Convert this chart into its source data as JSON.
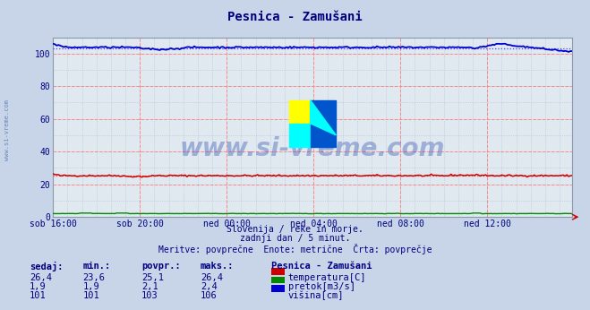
{
  "title": "Pesnica - Zamušani",
  "bg_color": "#c8d4e8",
  "plot_bg_color": "#e0e8f0",
  "grid_color_major_h": "#ff8888",
  "grid_color_major_v": "#ff8888",
  "grid_color_minor": "#b0c0d8",
  "text_color": "#000080",
  "title_color": "#000080",
  "x_tick_labels": [
    "sob 16:00",
    "sob 20:00",
    "ned 00:00",
    "ned 04:00",
    "ned 08:00",
    "ned 12:00"
  ],
  "x_tick_positions": [
    0,
    48,
    96,
    144,
    192,
    240
  ],
  "ylim": [
    0,
    110
  ],
  "yticks": [
    0,
    20,
    40,
    60,
    80,
    100
  ],
  "n_points": 288,
  "temp_avg": 25.1,
  "flow_avg": 2.1,
  "height_avg": 103,
  "temp_color": "#cc0000",
  "flow_color": "#008800",
  "height_color": "#0000cc",
  "avg_line_color_temp": "#ff4444",
  "avg_line_color_height": "#4444ff",
  "watermark_text": "www.si-vreme.com",
  "watermark_color": "#2244aa",
  "watermark_alpha": 0.35,
  "side_label": "www.si-vreme.com",
  "side_label_color": "#6688bb",
  "subtitle1": "Slovenija / reke in morje.",
  "subtitle2": "zadnji dan / 5 minut.",
  "subtitle3": "Meritve: povprečne  Enote: metrične  Črta: povprečje",
  "legend_title": "Pesnica - Zamušani",
  "legend_items": [
    "temperatura[C]",
    "pretok[m3/s]",
    "višina[cm]"
  ],
  "legend_colors": [
    "#cc0000",
    "#008800",
    "#0000cc"
  ],
  "table_headers": [
    "sedaj:",
    "min.:",
    "povpr.:",
    "maks.:"
  ],
  "table_data": [
    [
      "26,4",
      "23,6",
      "25,1",
      "26,4"
    ],
    [
      "1,9",
      "1,9",
      "2,1",
      "2,4"
    ],
    [
      "101",
      "101",
      "103",
      "106"
    ]
  ],
  "logo_yellow": "#ffff00",
  "logo_cyan": "#00ffff",
  "logo_blue": "#0055cc"
}
